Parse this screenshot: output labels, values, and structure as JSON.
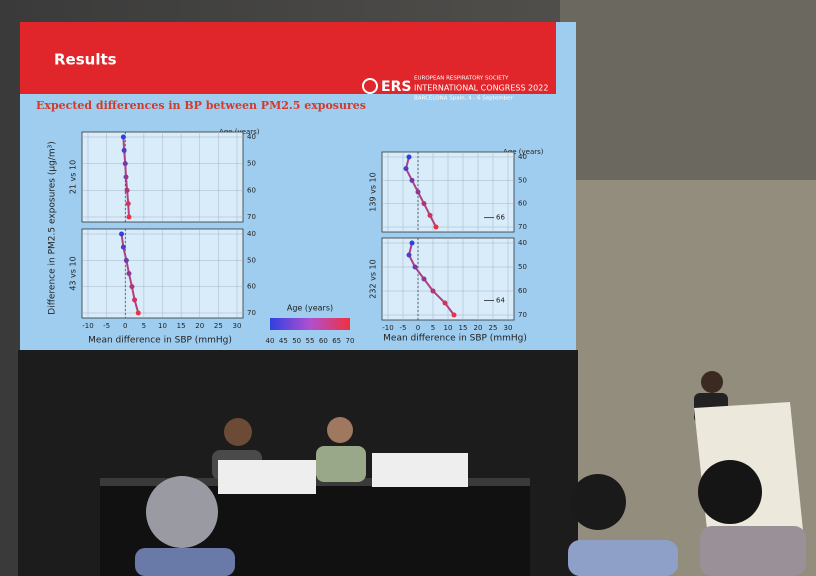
{
  "slide": {
    "title": "Results",
    "logo": "ERS",
    "org_lines": [
      "EUROPEAN RESPIRATORY SOCIETY",
      "INTERNATIONAL CONGRESS 2022",
      "BARCELONA Spain, 4 - 6 September"
    ],
    "heading": "Expected differences in BP between PM2.5 exposures",
    "y_axis_label": "Difference in PM2.5 exposures (µg/m³)",
    "ages": [
      40,
      50,
      60,
      70
    ],
    "left": {
      "age_label": "Age (years)",
      "x_label": "Mean difference in SBP (mmHg)",
      "xticks": [
        -10,
        -5,
        0,
        5,
        10,
        15,
        20,
        25,
        30
      ],
      "panels": [
        {
          "label": "21 vs 10",
          "mean_ages": [
            40,
            45,
            50,
            55,
            60,
            65,
            70
          ],
          "means": [
            -0.5,
            -0.3,
            0,
            0.2,
            0.5,
            0.8,
            1
          ]
        },
        {
          "label": "43 vs 10",
          "mean_ages": [
            40,
            45,
            50,
            55,
            60,
            65,
            70
          ],
          "means": [
            -1,
            -0.5,
            0.3,
            1,
            1.8,
            2.5,
            3.5
          ]
        }
      ]
    },
    "right": {
      "age_label": "Age (years)",
      "x_label": "Mean difference in SBP (mmHg)",
      "xticks": [
        -10,
        -5,
        0,
        5,
        10,
        15,
        20,
        25,
        30
      ],
      "panels": [
        {
          "label": "139 vs 10",
          "mean_ages": [
            40,
            45,
            50,
            55,
            60,
            65,
            70
          ],
          "means": [
            -3,
            -4,
            -2,
            0,
            2,
            4,
            6
          ],
          "annotation": "66",
          "annotation_age": 66
        },
        {
          "label": "232 vs 10",
          "mean_ages": [
            40,
            45,
            50,
            55,
            60,
            65,
            70
          ],
          "means": [
            -2,
            -3,
            -1,
            2,
            5,
            9,
            12
          ],
          "annotation": "64",
          "annotation_age": 64
        }
      ]
    },
    "colorbar": {
      "label": "Age (years)",
      "ticks": [
        40,
        45,
        50,
        55,
        60,
        65,
        70
      ]
    }
  }
}
